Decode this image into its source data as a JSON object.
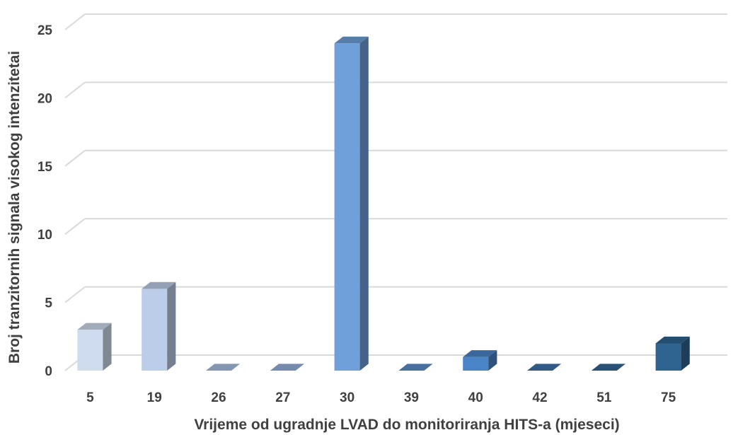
{
  "chart_data": {
    "type": "bar",
    "style": "3d-column",
    "categories": [
      "5",
      "19",
      "26",
      "27",
      "30",
      "39",
      "40",
      "42",
      "51",
      "75"
    ],
    "values": [
      3,
      6,
      0,
      0,
      24,
      0,
      1,
      0,
      0,
      2
    ],
    "xlabel": "Vrijeme od ugradnje LVAD do monitoriranja HITS-a (mjeseci)",
    "ylabel": "Broj tranzitornih signala visokog intenzitetai",
    "ylim": [
      0,
      25
    ],
    "yticks": [
      0,
      5,
      10,
      15,
      20,
      25
    ],
    "grid": true,
    "legend": "none",
    "colors": [
      "#cfdbef",
      "#bccde9",
      "#a9c0e4",
      "#96b2df",
      "#6fa0d9",
      "#5b8fcc",
      "#4a85c8",
      "#3f74ae",
      "#356896",
      "#2f6390"
    ]
  }
}
